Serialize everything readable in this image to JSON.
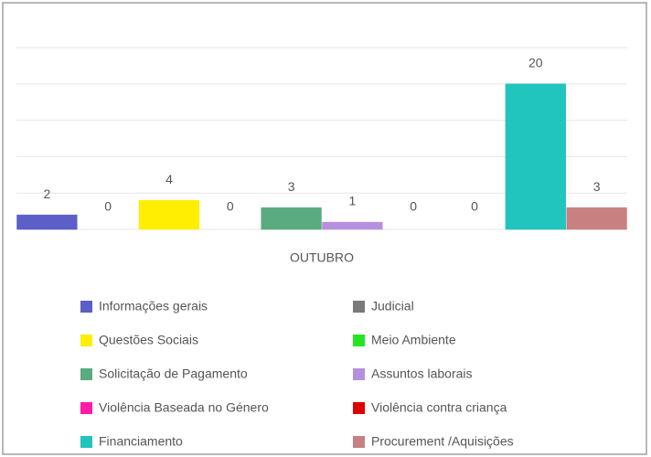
{
  "chart_data": {
    "type": "bar",
    "categories": [
      "OUTUBRO"
    ],
    "series": [
      {
        "name": "Informações gerais",
        "color": "#5b5fc7",
        "values": [
          2
        ]
      },
      {
        "name": "Judicial",
        "color": "#7a7a7a",
        "values": [
          0
        ]
      },
      {
        "name": "Questões Sociais",
        "color": "#ffee00",
        "values": [
          4
        ]
      },
      {
        "name": "Meio Ambiente",
        "color": "#22e622",
        "values": [
          0
        ]
      },
      {
        "name": "Solicitação de Pagamento",
        "color": "#5aab7f",
        "values": [
          3
        ]
      },
      {
        "name": "Assuntos laborais",
        "color": "#b58fe0",
        "values": [
          1
        ]
      },
      {
        "name": "Violência Baseada no Género",
        "color": "#ff1aa8",
        "values": [
          0
        ]
      },
      {
        "name": "Violência contra criança",
        "color": "#dd0000",
        "values": [
          0
        ]
      },
      {
        "name": "Financiamento",
        "color": "#22c4be",
        "values": [
          20
        ]
      },
      {
        "name": "Procurement /Aquisições",
        "color": "#c98080",
        "values": [
          3
        ]
      }
    ],
    "ylim": [
      0,
      25
    ],
    "yticks": [
      0,
      5,
      10,
      15,
      20,
      25
    ],
    "grid": true
  }
}
